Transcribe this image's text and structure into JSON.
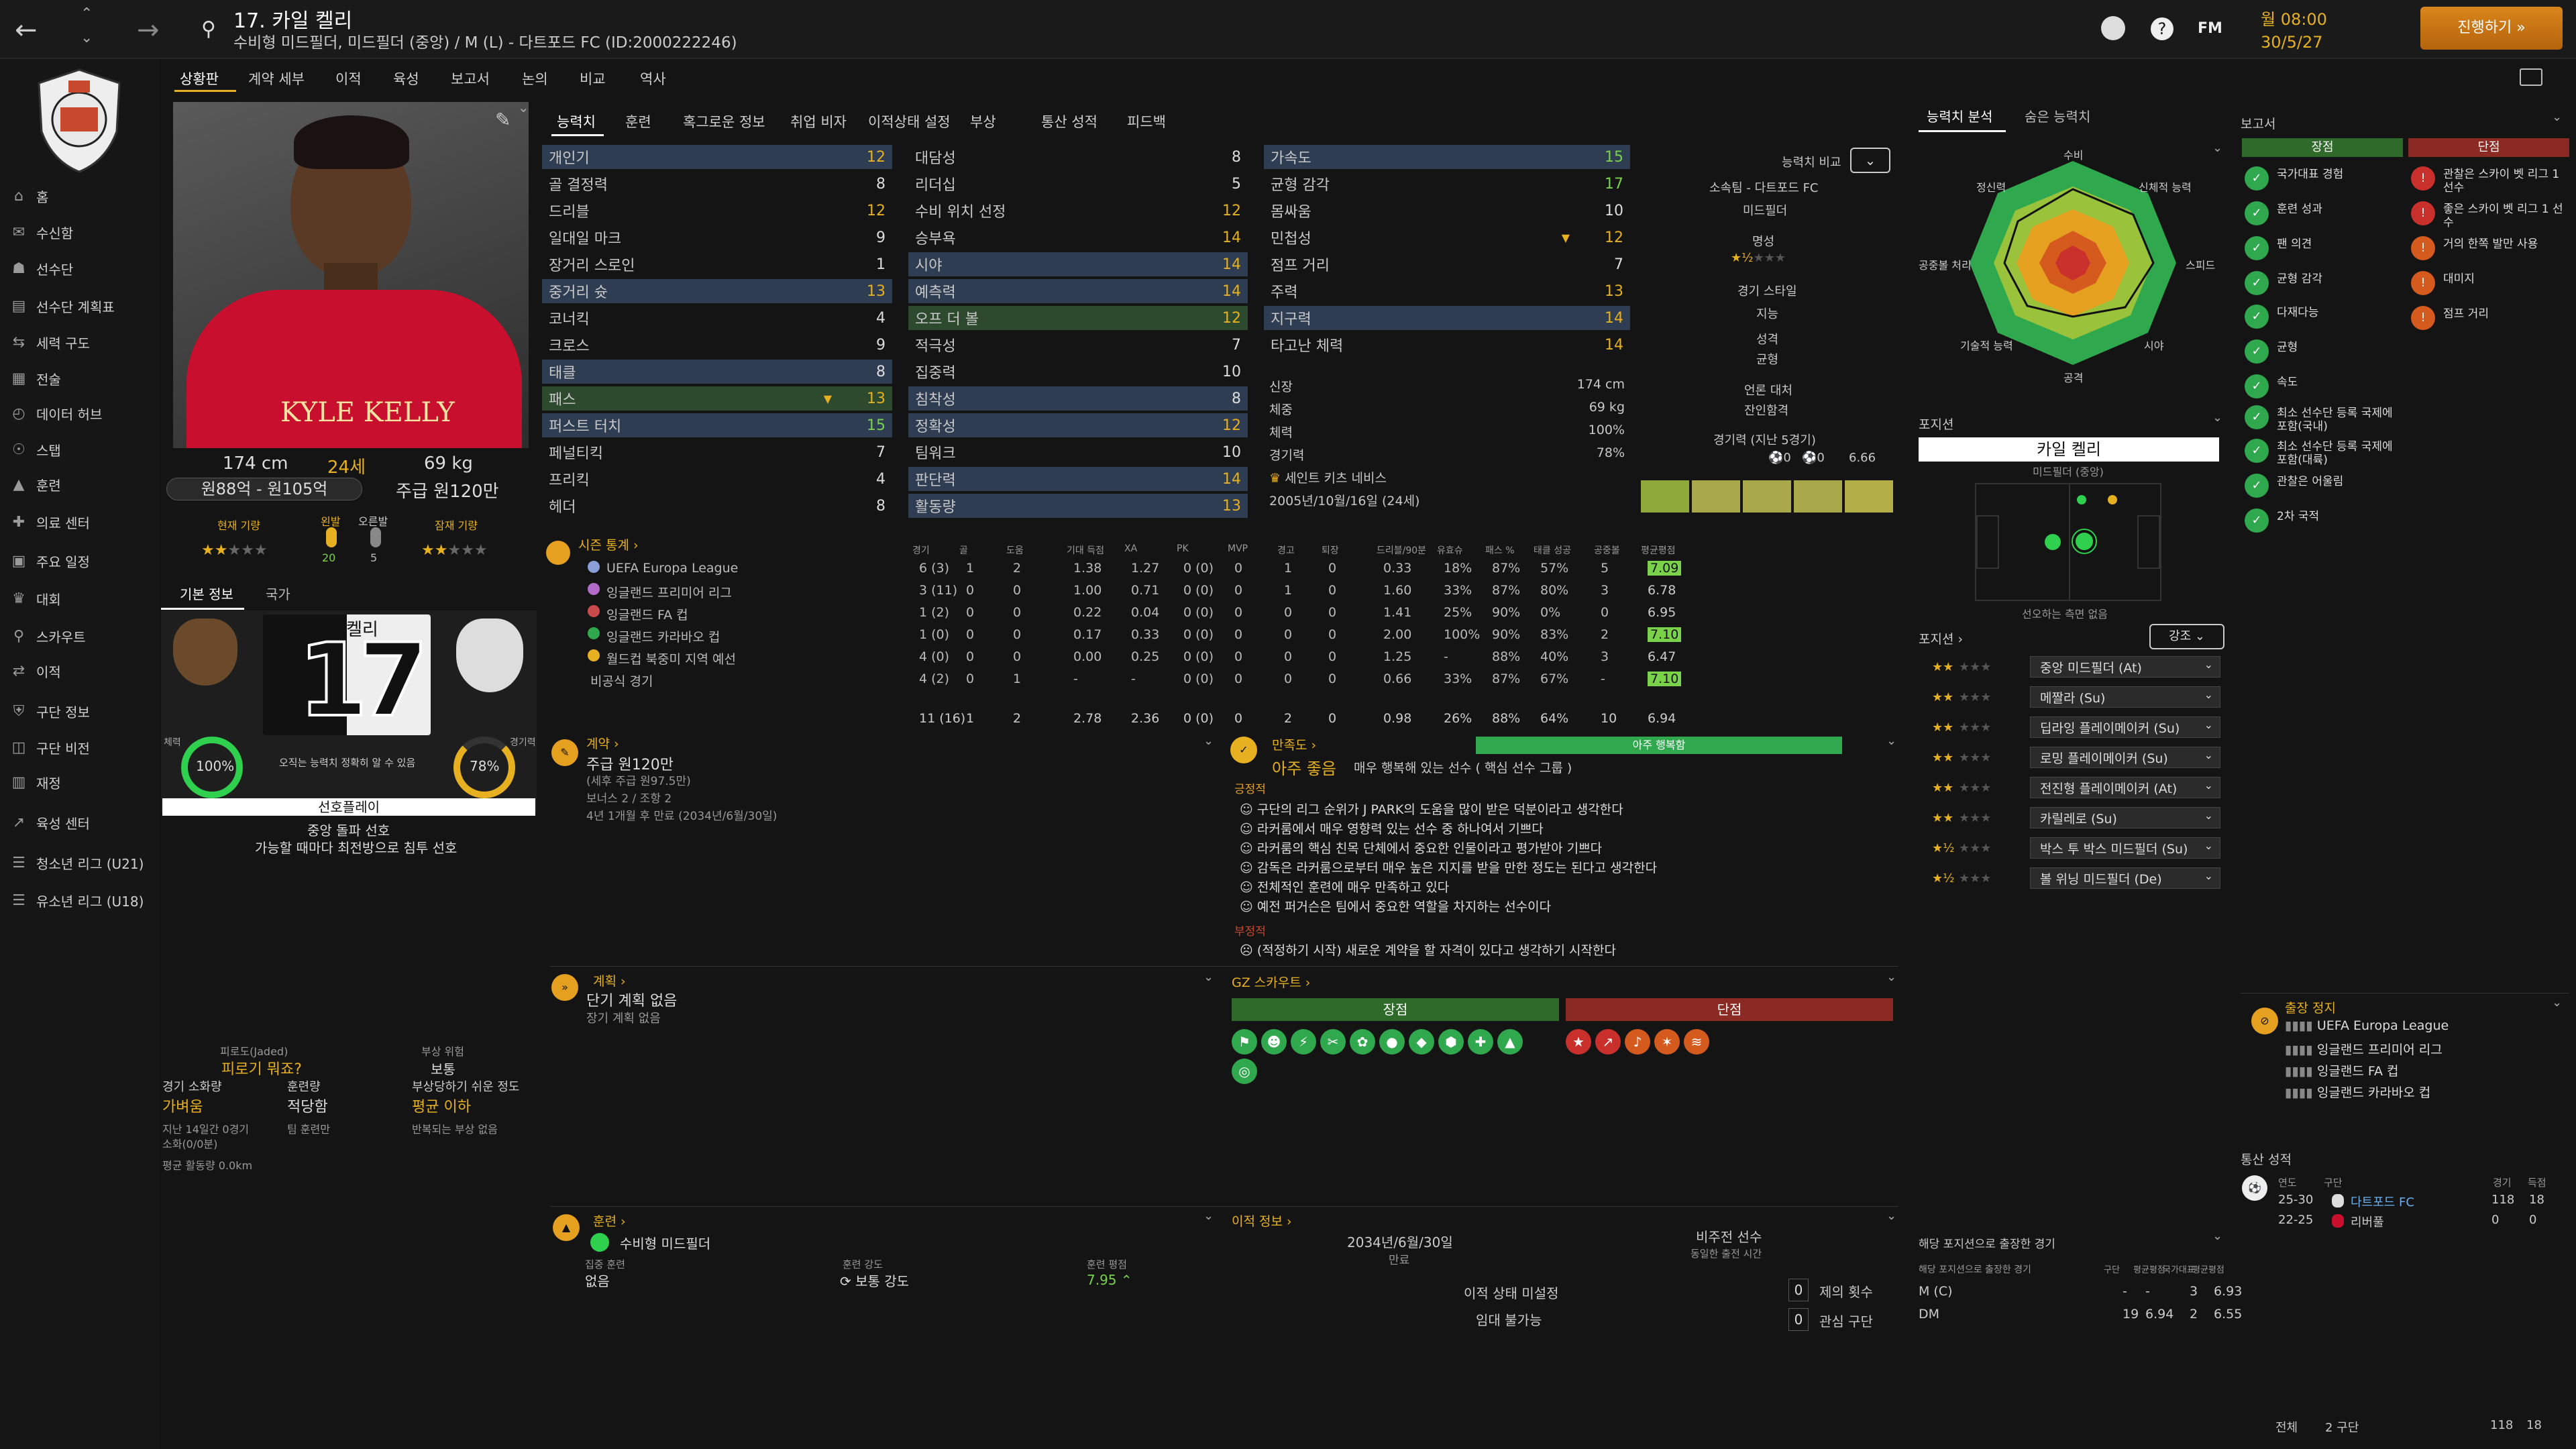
{
  "header": {
    "player_no": "17.",
    "player_name": "카일 켈리",
    "subtitle": "수비형 미드필더, 미드필더 (중앙) / M (L) - 다트포드 FC (ID:2000222246)",
    "date_line1": "월 08:00",
    "date_line2": "30/5/27",
    "continue_label": "진행하기",
    "fm_label": "FM"
  },
  "subtabs": [
    "상황판",
    "계약 세부",
    "이적",
    "육성",
    "보고서",
    "논의",
    "비교",
    "역사"
  ],
  "sidebar": {
    "items": [
      "홈",
      "수신함",
      "선수단",
      "선수단 계획표",
      "세력 구도",
      "전술",
      "데이터 허브",
      "스탭",
      "훈련",
      "의료 센터",
      "주요 일정",
      "대회",
      "스카우트",
      "이적",
      "구단 정보",
      "구단 비전",
      "재정",
      "육성 센터",
      "청소년 리그 (U21)",
      "유소년 리그 (U18)"
    ]
  },
  "profile": {
    "height": "174 cm",
    "age": "24세",
    "weight": "69 kg",
    "value": "원88억 - 원105억",
    "wage": "주급 원120만",
    "current_label": "현재 기량",
    "potential_label": "잠재 기량",
    "left_foot": "왼발",
    "right_foot": "오른발",
    "left_foot_val": "20",
    "right_foot_val": "5",
    "shirt_name": "KYLE KELLY"
  },
  "basic_tabs": [
    "기본 정보",
    "국가"
  ],
  "squad": {
    "name": "켈리",
    "number": "17",
    "desc": "오직는 능력치 정확히 알 수 있음",
    "fitness_label": "체력",
    "fitness": "100%",
    "sharpness_label": "경기력",
    "sharpness": "78%",
    "role_title": "선호플레이",
    "role_desc1": "중앙 돌파 선호",
    "role_desc2": "가능할 때마다 최전방으로 침투 선호"
  },
  "injury": {
    "trait_label": "피로도(Jaded)",
    "trait_val": "피로기 뭐죠?",
    "risk_label": "부상 위험",
    "risk_val": "보통",
    "load_label": "경기 소화량",
    "load_val": "가벼움",
    "train_label": "훈련량",
    "train_val": "적당함",
    "prone_label": "부상당하기 쉬운 정도",
    "prone_val": "평균 이하",
    "note1": "지난 14일간 0경기",
    "note2": "소화(0/0분)",
    "note3": "팀 훈련만",
    "note4": "반복되는 부상 없음",
    "distance": "평균 활동량 0.0km"
  },
  "attr_tabs": [
    "능력치",
    "훈련",
    "혹그로운 정보",
    "취업 비자",
    "이적상태 설정",
    "부상",
    "통산 성적",
    "피드백"
  ],
  "attrs": {
    "technical": [
      [
        "개인기",
        "12"
      ],
      [
        "골 결정력",
        "8"
      ],
      [
        "드리블",
        "12"
      ],
      [
        "일대일 마크",
        "9"
      ],
      [
        "장거리 스로인",
        "1"
      ],
      [
        "중거리 슛",
        "13"
      ],
      [
        "코너킥",
        "4"
      ],
      [
        "크로스",
        "9"
      ],
      [
        "태클",
        "8"
      ],
      [
        "패스",
        "13"
      ],
      [
        "퍼스트 터치",
        "15"
      ],
      [
        "페널티킥",
        "7"
      ],
      [
        "프리킥",
        "4"
      ],
      [
        "헤더",
        "8"
      ]
    ],
    "mental": [
      [
        "대담성",
        "8"
      ],
      [
        "리더십",
        "5"
      ],
      [
        "수비 위치 선정",
        "12"
      ],
      [
        "승부욕",
        "14"
      ],
      [
        "시야",
        "14"
      ],
      [
        "예측력",
        "14"
      ],
      [
        "오프 더 볼",
        "12"
      ],
      [
        "적극성",
        "7"
      ],
      [
        "집중력",
        "10"
      ],
      [
        "침착성",
        "8"
      ],
      [
        "정확성",
        "12"
      ],
      [
        "팀워크",
        "10"
      ],
      [
        "판단력",
        "14"
      ],
      [
        "활동량",
        "13"
      ]
    ],
    "physical": [
      [
        "가속도",
        "15"
      ],
      [
        "균형 감각",
        "17"
      ],
      [
        "몸싸움",
        "10"
      ],
      [
        "민첩성",
        "12"
      ],
      [
        "점프 거리",
        "7"
      ],
      [
        "주력",
        "13"
      ],
      [
        "지구력",
        "14"
      ],
      [
        "타고난 체력",
        "14"
      ]
    ]
  },
  "phys": {
    "height_lbl": "신장",
    "height": "174 cm",
    "weight_lbl": "체중",
    "weight": "69 kg",
    "fit_lbl": "체력",
    "fit": "100%",
    "sharp_lbl": "경기력",
    "sharp": "78%",
    "nation": "세인트 키츠 네비스",
    "dob": "2005년/10월/16일 (24세)"
  },
  "compare": {
    "label": "능력치 비교",
    "club": "소속팀 - 다트포드 FC",
    "pos": "미드필더",
    "rep": "명성",
    "style": "경기 스타일",
    "iq": "지능",
    "personality": "성격",
    "balance": "균형",
    "media": "언론 대처",
    "agent": "잔인함격",
    "form_label": "경기력 (지난 5경기)",
    "form_avg": "6.66",
    "g": "0",
    "a": "0"
  },
  "analysis": {
    "tabs": [
      "능력치 분석",
      "숨은 능력치"
    ],
    "axes": [
      "수비",
      "신체적 능력",
      "스피드",
      "시야",
      "공격",
      "기술적 능력",
      "공중볼 처리",
      "정신력"
    ]
  },
  "report": {
    "title": "보고서",
    "pros_label": "장점",
    "cons_label": "단점",
    "pros": [
      "국가대표 경험",
      "훈련 성과",
      "팬 의견",
      "균형 감각",
      "다재다능",
      "균형",
      "속도",
      "최소 선수단 등록 국제에 포함(국내)",
      "최소 선수단 등록 국제에 포함(대륙)",
      "관찰은 어울림",
      "2차 국적"
    ],
    "cons": [
      "관찰은 스카이 벳 리그 1 선수",
      "좋은 스카이 벳 리그 1 선수",
      "거의 한쪽 발만 사용",
      "대미지",
      "점프 거리"
    ]
  },
  "stats": {
    "title": "시즌 통계",
    "headers": [
      "경기",
      "골",
      "도움",
      "기대 득점",
      "XA",
      "PK",
      "MVP",
      "경고",
      "퇴장",
      "드리블/90분",
      "유효슈",
      "패스 %",
      "태클 성공",
      "공중볼",
      "평균평점"
    ],
    "rows": [
      [
        "UEFA Europa League",
        "6 (3)",
        "1",
        "2",
        "1.38",
        "1.27",
        "0 (0)",
        "0",
        "1",
        "0",
        "0.33",
        "18%",
        "87%",
        "57%",
        "5",
        "7.09"
      ],
      [
        "잉글랜드 프리미어 리그",
        "3 (11)",
        "0",
        "0",
        "1.00",
        "0.71",
        "0 (0)",
        "0",
        "1",
        "0",
        "1.60",
        "33%",
        "87%",
        "80%",
        "3",
        "6.78"
      ],
      [
        "잉글랜드 FA 컵",
        "1 (2)",
        "0",
        "0",
        "0.22",
        "0.04",
        "0 (0)",
        "0",
        "0",
        "0",
        "1.41",
        "25%",
        "90%",
        "0%",
        "0",
        "6.95"
      ],
      [
        "잉글랜드 카라바오 컵",
        "1 (0)",
        "0",
        "0",
        "0.17",
        "0.33",
        "0 (0)",
        "0",
        "0",
        "0",
        "2.00",
        "100%",
        "90%",
        "83%",
        "2",
        "7.10"
      ],
      [
        "월드컵 북중미 지역 예선",
        "4 (0)",
        "0",
        "0",
        "0.00",
        "0.25",
        "0 (0)",
        "0",
        "0",
        "0",
        "1.25",
        "-",
        "88%",
        "40%",
        "3",
        "6.47"
      ],
      [
        "비공식 경기",
        "4 (2)",
        "0",
        "1",
        "-",
        "-",
        "0 (0)",
        "0",
        "0",
        "0",
        "0.66",
        "33%",
        "87%",
        "67%",
        "-",
        "7.10"
      ]
    ],
    "total": [
      "11 (16)",
      "1",
      "2",
      "2.78",
      "2.36",
      "0 (0)",
      "0",
      "2",
      "0",
      "0.98",
      "26%",
      "88%",
      "64%",
      "10",
      "6.94"
    ]
  },
  "contract": {
    "title": "계약",
    "wage": "주급 원120만",
    "note": "(세후 주급 원97.5만)",
    "bonus": "보너스 2 / 조항 2",
    "end": "4년 1개월 후 만료 (2034년/6월/30일)"
  },
  "happiness": {
    "title": "만족도",
    "value": "아주 좋음",
    "desc": "매우 행복해 있는 선수 ( 핵심 선수 그룹 )",
    "bar": "아주 행복함",
    "pos_label": "긍정적",
    "pos": [
      "구단의 리그 순위가 J PARK의 도움을 많이 받은 덕분이라고 생각한다",
      "라커룸에서 매우 영향력 있는 선수 중 하나여서 기쁘다",
      "라커룸의 핵심 친목 단체에서 중요한 인물이라고 평가받아 기쁘다",
      "감독은 라커룸으로부터 매우 높은 지지를 받을 만한 정도는 된다고 생각한다",
      "전체적인 훈련에 매우 만족하고 있다",
      "예전 퍼거슨은 팀에서 중요한 역할을 차지하는 선수이다"
    ],
    "neg_label": "부정적",
    "neg": [
      "(적정하기 시작) 새로운 계약을 할 자격이 있다고 생각하기 시작한다"
    ]
  },
  "plan": {
    "title": "계획",
    "line1": "단기 계획 없음",
    "line2": "장기 계획 없음"
  },
  "scout": {
    "title": "GZ 스카우트",
    "pros": "장점",
    "cons": "단점"
  },
  "training": {
    "title": "훈련",
    "role": "수비형 미드필더",
    "focus_label": "집중 훈련",
    "focus": "없음",
    "intensity_label": "훈련 강도",
    "intensity": "보통 강도",
    "rating_label": "훈련 평점",
    "rating": "7.95"
  },
  "transfer": {
    "title": "이적 정보",
    "date": "2034년/6월/30일",
    "date_label": "만료",
    "status": "이적 상태 미설정",
    "loan": "임대 불가능",
    "nonplayer": "비주전 선수",
    "note": "동일한 출전 시간",
    "offers": "제의 횟수",
    "interest": "관심 구단",
    "offers_v": "0",
    "interest_v": "0"
  },
  "positions": {
    "title": "포지션",
    "player": "카일 켈리",
    "role": "미드필더 (중앙)",
    "hint": "선오하는 측면 없음",
    "list_title": "포지션",
    "dropdown": "강조",
    "roles": [
      "중앙 미드필더 (At)",
      "메짤라 (Su)",
      "딥라잉 플레이메이커 (Su)",
      "로밍 플레이메이커 (Su)",
      "전진형 플레이메이커 (At)",
      "카릴레로 (Su)",
      "박스 투 박스 미드필더 (Su)",
      "볼 위닝 미드필더 (De)"
    ]
  },
  "appearances": {
    "title": "해당 포지션으로 출장한 경기",
    "sub": "해당 포지션으로 출장한 경기",
    "headers": [
      "구단",
      "평균평점",
      "국가대표",
      "평균평점"
    ],
    "rows": [
      [
        "M (C)",
        "-",
        "-",
        "3",
        "6.93"
      ],
      [
        "DM",
        "19",
        "6.94",
        "2",
        "6.55"
      ]
    ]
  },
  "banned": {
    "title": "출장 정지",
    "items": [
      "UEFA Europa League",
      "잉글랜드 프리미어 리그",
      "잉글랜드 FA 컵",
      "잉글랜드 카라바오 컵"
    ]
  },
  "career": {
    "title": "통산 성적",
    "h_year": "연도",
    "h_club": "구단",
    "h_apps": "경기",
    "h_goals": "득점",
    "rows": [
      [
        "25-30",
        "다트포드 FC",
        "118",
        "18"
      ],
      [
        "22-25",
        "리버풀",
        "0",
        "0"
      ]
    ],
    "total_label": "전체",
    "total_clubs": "2 구단",
    "total_apps": "118",
    "total_goals": "18"
  }
}
